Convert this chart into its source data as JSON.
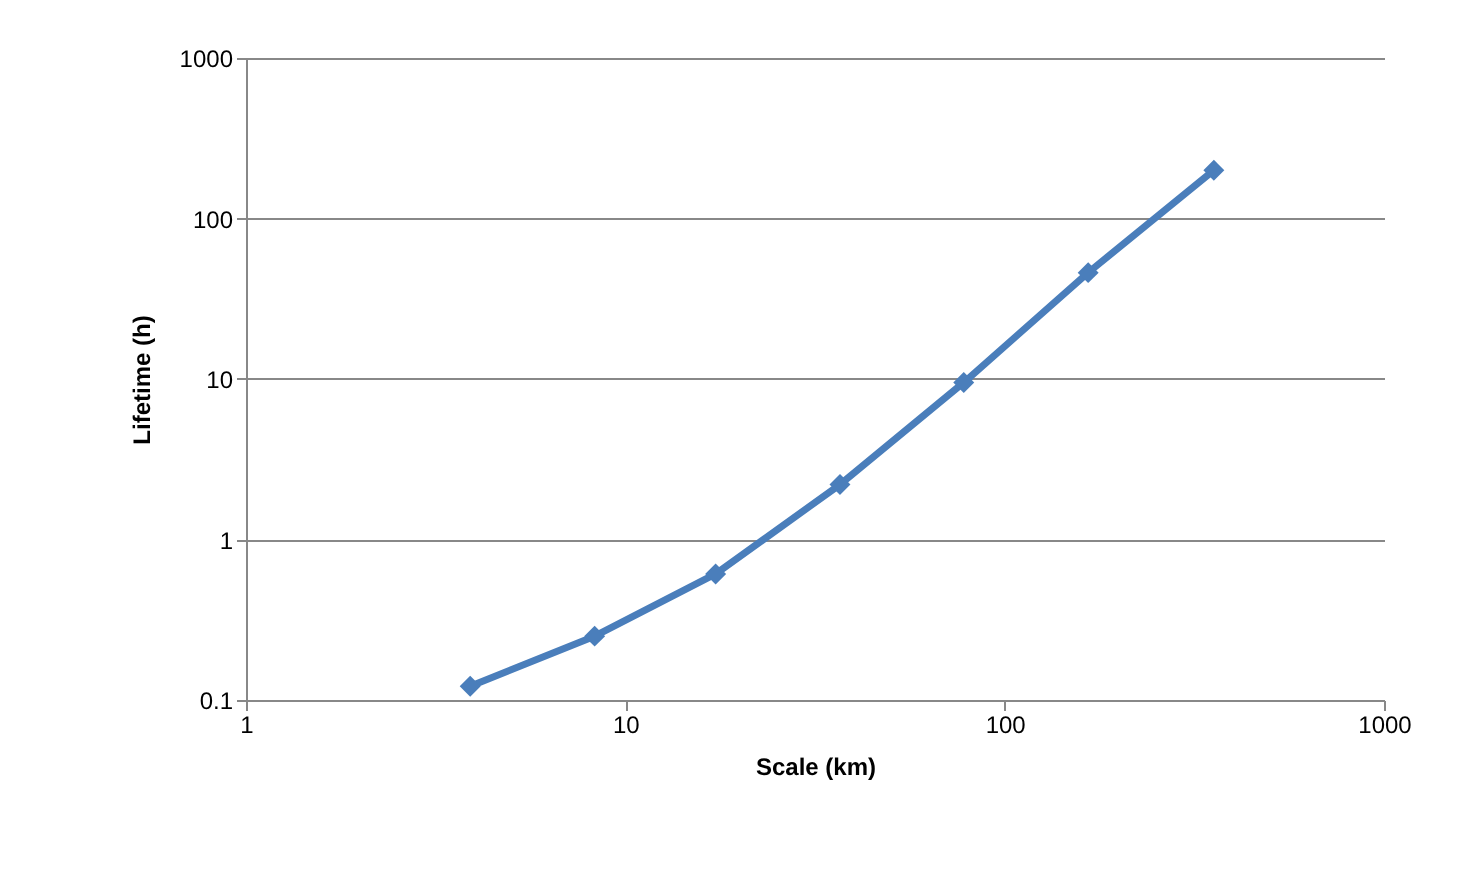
{
  "chart_data": {
    "type": "line",
    "xlabel": "Scale (km)",
    "ylabel": "Lifetime (h)",
    "x": [
      3.9,
      8.3,
      17.3,
      36.8,
      78,
      166,
      356
    ],
    "series": [
      {
        "color": "#4a7ebb",
        "values": [
          0.122,
          0.25,
          0.61,
          2.2,
          9.5,
          46,
          200
        ]
      }
    ],
    "xlim": [
      1,
      1000
    ],
    "xticks": [
      1,
      10,
      100,
      1000
    ],
    "ylim": [
      0.1,
      1000
    ],
    "yticks": [
      0.1,
      1,
      10,
      100,
      1000
    ],
    "log": "xy",
    "grid": "y",
    "marker": "diamond",
    "line_style": "solid"
  }
}
